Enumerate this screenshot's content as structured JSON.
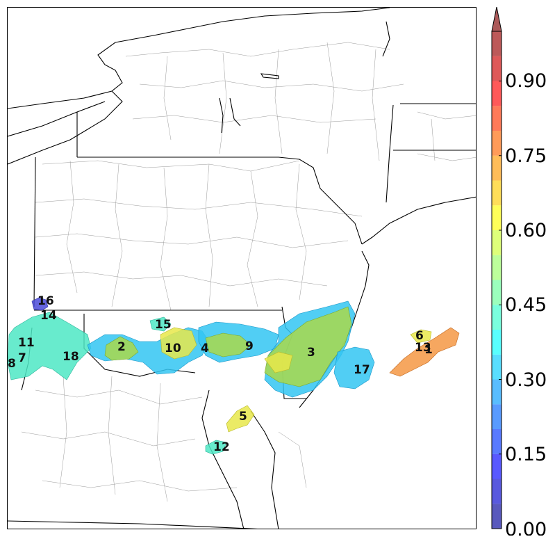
{
  "map": {
    "region_labels": [
      "1",
      "2",
      "3",
      "4",
      "5",
      "6",
      "7",
      "8",
      "9",
      "10",
      "11",
      "12",
      "13",
      "14",
      "15",
      "16",
      "17",
      "18"
    ]
  },
  "colorbar": {
    "tick_labels": [
      "0.00",
      "0.15",
      "0.30",
      "0.45",
      "0.60",
      "0.75",
      "0.90"
    ],
    "range": [
      0.0,
      1.0
    ],
    "extend": "max",
    "colormap": "jet",
    "alpha": 0.65
  },
  "colors": {
    "v0_05": "#4a4ad8",
    "v0_35": "#33c6f2",
    "v0_45": "#4de8c4",
    "v0_55": "#a9d84a",
    "v0_62": "#e8e84a",
    "v0_78": "#f49844",
    "v0_9": "#ef5b4a"
  }
}
